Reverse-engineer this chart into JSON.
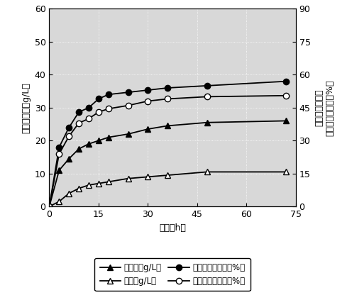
{
  "time": [
    0,
    3,
    6,
    9,
    12,
    15,
    18,
    24,
    30,
    36,
    48,
    72
  ],
  "glucose_gL": [
    0,
    11,
    14.5,
    17.5,
    19,
    20,
    21,
    22,
    23.5,
    24.5,
    25.5,
    26
  ],
  "xylose_gL": [
    0,
    1.5,
    4,
    5.5,
    6.5,
    7,
    7.5,
    8.5,
    9,
    9.5,
    10.5,
    10.5
  ],
  "glucan_rate": [
    0,
    27,
    36,
    43,
    45,
    49,
    51,
    52,
    53,
    54,
    55,
    57
  ],
  "xylan_rate": [
    0,
    24,
    32,
    38,
    40,
    43,
    44.5,
    46,
    48,
    49,
    50,
    50.5
  ],
  "left_ylim": [
    0,
    60
  ],
  "right_ylim": [
    0,
    90
  ],
  "xlim": [
    0,
    75
  ],
  "left_yticks": [
    0,
    10,
    20,
    30,
    40,
    50,
    60
  ],
  "right_yticks": [
    0,
    15,
    30,
    45,
    60,
    75,
    90
  ],
  "xticks": [
    0,
    15,
    30,
    45,
    60,
    75
  ],
  "xlabel": "时间（h）",
  "ylabel_left": "葡萄糖木糖（g/L）",
  "ylabel_right1": "葡聚糖酶解得率",
  "ylabel_right2": "木聚糖酶解得率（%）",
  "leg1": "葡萄糖（g/L）",
  "leg2": "木糖（g/L）",
  "leg3": "葡聚糖酶解得率（%）",
  "leg4": "木聚糖酶解得率（%）",
  "bg_color": "#d8d8d8",
  "grid_color": "white",
  "line_color": "black",
  "fontsize_tick": 9,
  "fontsize_label": 9,
  "fontsize_legend": 8.5
}
